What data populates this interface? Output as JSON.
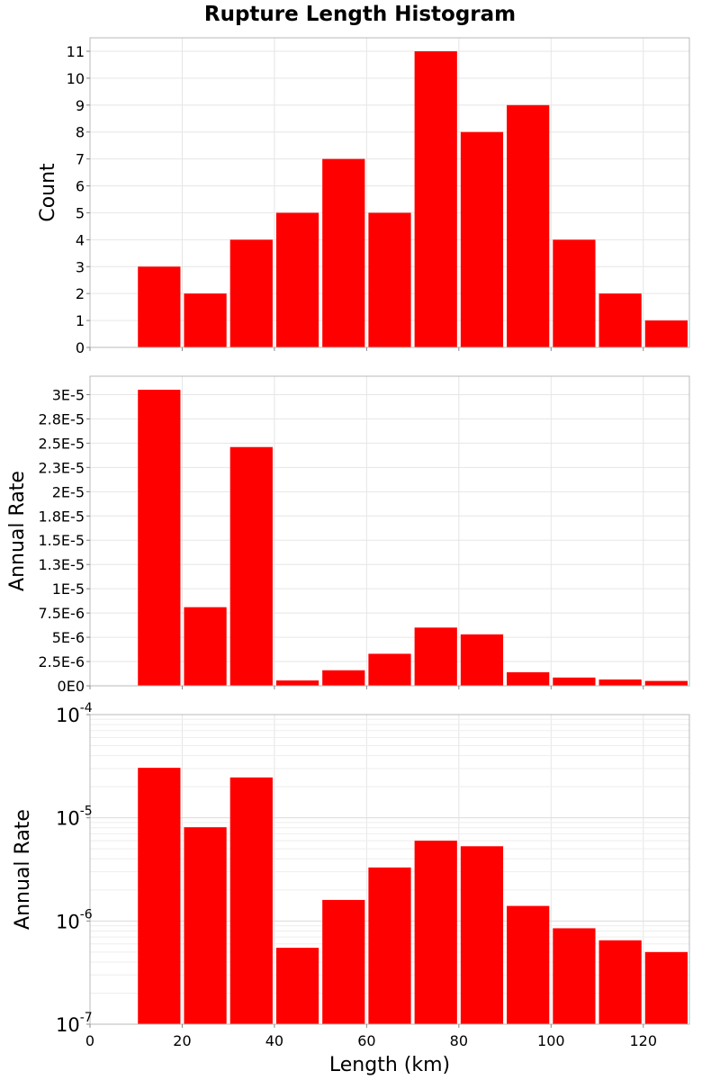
{
  "chart_data": {
    "type": "bar",
    "title": "Rupture Length Histogram",
    "xlabel": "Length (km)",
    "xlim": [
      0,
      130
    ],
    "x_ticks": [
      "0",
      "20",
      "40",
      "60",
      "80",
      "100",
      "120"
    ],
    "x_tick_values": [
      0,
      20,
      40,
      60,
      80,
      100,
      120
    ],
    "bin_width": 10,
    "bin_starts": [
      10,
      20,
      30,
      40,
      50,
      60,
      70,
      80,
      90,
      100,
      110,
      120
    ],
    "bar_color": "#ff0000",
    "grid": true,
    "panels": [
      {
        "name": "count",
        "ylabel": "Count",
        "scale": "linear",
        "ylim": [
          0,
          11.5
        ],
        "y_ticks": [
          "0",
          "1",
          "2",
          "3",
          "4",
          "5",
          "6",
          "7",
          "8",
          "9",
          "10",
          "11"
        ],
        "y_tick_values": [
          0,
          1,
          2,
          3,
          4,
          5,
          6,
          7,
          8,
          9,
          10,
          11
        ],
        "values": [
          3,
          2,
          4,
          5,
          7,
          5,
          11,
          8,
          9,
          4,
          2,
          1
        ]
      },
      {
        "name": "rate-linear",
        "ylabel": "Annual Rate",
        "scale": "linear",
        "ylim": [
          0,
          3.19e-05
        ],
        "y_ticks": [
          "0E0",
          "2.5E-6",
          "5E-6",
          "7.5E-6",
          "1E-5",
          "1.3E-5",
          "1.5E-5",
          "1.8E-5",
          "2E-5",
          "2.3E-5",
          "2.5E-5",
          "2.8E-5",
          "3E-5"
        ],
        "y_tick_values": [
          0,
          2.5e-06,
          5e-06,
          7.5e-06,
          1e-05,
          1.25e-05,
          1.5e-05,
          1.75e-05,
          2e-05,
          2.25e-05,
          2.5e-05,
          2.75e-05,
          3e-05
        ],
        "values": [
          3.05e-05,
          8.1e-06,
          2.46e-05,
          5.5e-07,
          1.6e-06,
          3.3e-06,
          6e-06,
          5.3e-06,
          1.4e-06,
          8.5e-07,
          6.5e-07,
          5e-07
        ]
      },
      {
        "name": "rate-log",
        "ylabel": "Annual Rate",
        "scale": "log",
        "ylim": [
          1e-07,
          0.0001
        ],
        "y_ticks": [
          {
            "base": "10",
            "exp": "-7",
            "value": 1e-07
          },
          {
            "base": "10",
            "exp": "-6",
            "value": 1e-06
          },
          {
            "base": "10",
            "exp": "-5",
            "value": 1e-05
          },
          {
            "base": "10",
            "exp": "-4",
            "value": 0.0001
          }
        ],
        "values": [
          3.05e-05,
          8.1e-06,
          2.46e-05,
          5.5e-07,
          1.6e-06,
          3.3e-06,
          6e-06,
          5.3e-06,
          1.4e-06,
          8.5e-07,
          6.5e-07,
          5e-07
        ]
      }
    ]
  }
}
